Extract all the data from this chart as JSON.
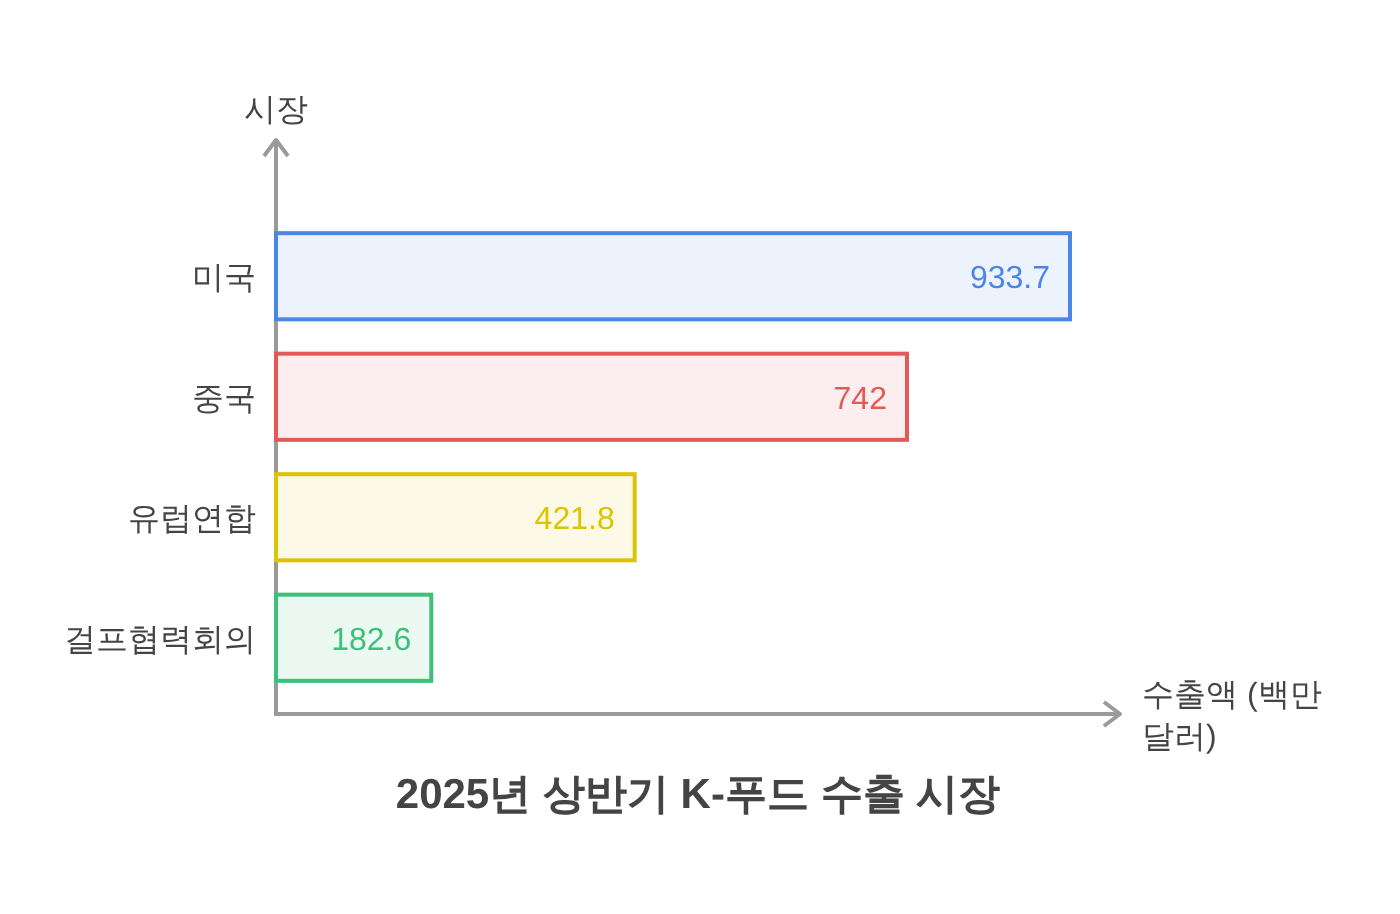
{
  "chart_data": {
    "type": "bar",
    "orientation": "horizontal",
    "title": "2025년 상반기 K-푸드 수출 시장",
    "xlabel": "수출액 (백만 달러)",
    "ylabel": "시장",
    "categories": [
      "미국",
      "중국",
      "유럽연합",
      "걸프협력회의"
    ],
    "values": [
      933.7,
      742,
      421.8,
      182.6
    ],
    "colors": [
      "#4a86e8",
      "#e45858",
      "#dcc400",
      "#3cc17a"
    ],
    "data_labels": true,
    "tick_labels": "y"
  }
}
